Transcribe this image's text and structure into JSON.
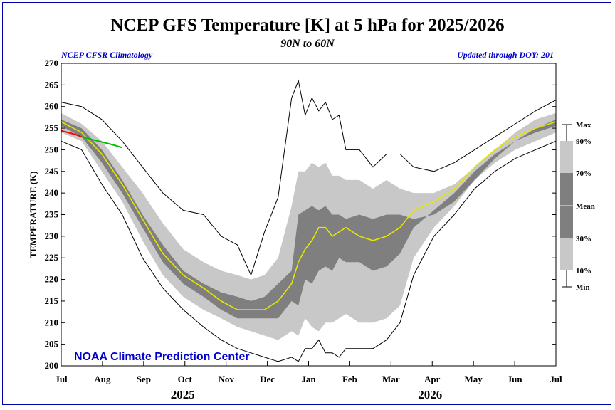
{
  "header": {
    "title": "NCEP GFS Temperature [K] at 5 hPa for 2025/2026",
    "subtitle": "90N to 60N",
    "source_left": "NCEP CFSR Climatology",
    "source_right": "Updated through DOY: 201"
  },
  "watermark": "NOAA Climate Prediction Center",
  "colors": {
    "band_outer": "#c8c8c8",
    "band_inner": "#7f7f7f",
    "mean": "#e6e600",
    "obs_recent": "#ff0000",
    "obs_latest": "#00c000",
    "extremes": "#000000",
    "watermark": "#0000cc"
  },
  "chart_data": {
    "type": "line",
    "xlabel": "",
    "ylabel": "TEMPERATURE (K)",
    "ylim": [
      200,
      270
    ],
    "xlim": [
      0,
      365
    ],
    "yticks": [
      "200",
      "205",
      "210",
      "215",
      "220",
      "225",
      "230",
      "235",
      "240",
      "245",
      "250",
      "255",
      "260",
      "265",
      "270"
    ],
    "month_labels": [
      "Jul",
      "Aug",
      "Sep",
      "Oct",
      "Nov",
      "Dec",
      "Jan",
      "Feb",
      "Mar",
      "Apr",
      "May",
      "Jun",
      "Jul"
    ],
    "year_labels": [
      "2025",
      "2026"
    ],
    "legend": [
      "Max",
      "90%",
      "70%",
      "Mean",
      "30%",
      "10%",
      "Min"
    ],
    "x_day": [
      0,
      15,
      30,
      45,
      60,
      75,
      90,
      105,
      118,
      130,
      140,
      150,
      160,
      170,
      175,
      180,
      185,
      190,
      195,
      200,
      205,
      210,
      220,
      230,
      240,
      250,
      260,
      275,
      290,
      305,
      320,
      335,
      350,
      365
    ],
    "series": [
      {
        "name": "Max",
        "values": [
          261,
          260,
          257,
          252,
          246,
          240,
          236,
          235,
          230,
          228,
          221,
          231,
          239,
          262,
          266,
          258,
          262,
          259,
          261,
          257,
          258,
          250,
          250,
          246,
          249,
          249,
          246,
          245,
          247,
          250,
          253,
          256,
          259,
          261.5
        ]
      },
      {
        "name": "90%",
        "values": [
          258.5,
          256,
          252,
          246,
          240,
          233,
          227,
          224,
          222,
          221,
          220,
          221,
          225,
          237,
          245,
          245,
          247,
          246,
          247,
          244,
          244,
          243,
          243,
          241,
          243,
          241,
          240,
          240,
          242,
          246,
          250,
          254,
          257,
          258.5
        ]
      },
      {
        "name": "70%",
        "values": [
          257,
          255,
          250,
          243,
          235,
          228,
          222,
          219,
          217,
          216,
          215,
          216,
          219,
          222,
          235,
          236,
          237,
          236,
          237,
          235,
          235,
          234,
          235,
          234,
          235,
          235,
          234,
          235,
          238,
          243,
          248,
          252,
          255,
          257
        ]
      },
      {
        "name": "Mean",
        "values": [
          256.5,
          254,
          249,
          242,
          234,
          226,
          221,
          218,
          215,
          213,
          213,
          213,
          215,
          219,
          224,
          227,
          229,
          232,
          232,
          230,
          231,
          232,
          230,
          229,
          230,
          232,
          236,
          238,
          241,
          246,
          250,
          253,
          255,
          256.5
        ]
      },
      {
        "name": "30%",
        "values": [
          255.5,
          253,
          247,
          240,
          232,
          224,
          219,
          216,
          213,
          211,
          211,
          211,
          211,
          215,
          214,
          220,
          219,
          222,
          223,
          222,
          225,
          224,
          224,
          222,
          223,
          226,
          232,
          236,
          240,
          245,
          249,
          252,
          254,
          255.5
        ]
      },
      {
        "name": "10%",
        "values": [
          254,
          252,
          245,
          238,
          229,
          221,
          216,
          213,
          211,
          209,
          208,
          207,
          206,
          208,
          207,
          211,
          209,
          208,
          210,
          210,
          211,
          212,
          210,
          210,
          211,
          214,
          225,
          232,
          237,
          243,
          247,
          250,
          252,
          254
        ]
      },
      {
        "name": "Min",
        "values": [
          252,
          250,
          242,
          235,
          225,
          218,
          213,
          209,
          206,
          204,
          203,
          202,
          201,
          202,
          201,
          204,
          204,
          206,
          203,
          203,
          202,
          204,
          204,
          204,
          206,
          210,
          221,
          230,
          235,
          241,
          245,
          248,
          250,
          252
        ]
      }
    ],
    "observed": [
      {
        "name": "recent",
        "x": [
          0,
          5,
          10,
          15
        ],
        "values": [
          254.4,
          254,
          253.6,
          253
        ]
      },
      {
        "name": "latest",
        "x": [
          15,
          20,
          25,
          30,
          35,
          40,
          45
        ],
        "values": [
          253,
          252.6,
          252.2,
          251.8,
          251.4,
          251,
          250.5
        ]
      }
    ]
  }
}
